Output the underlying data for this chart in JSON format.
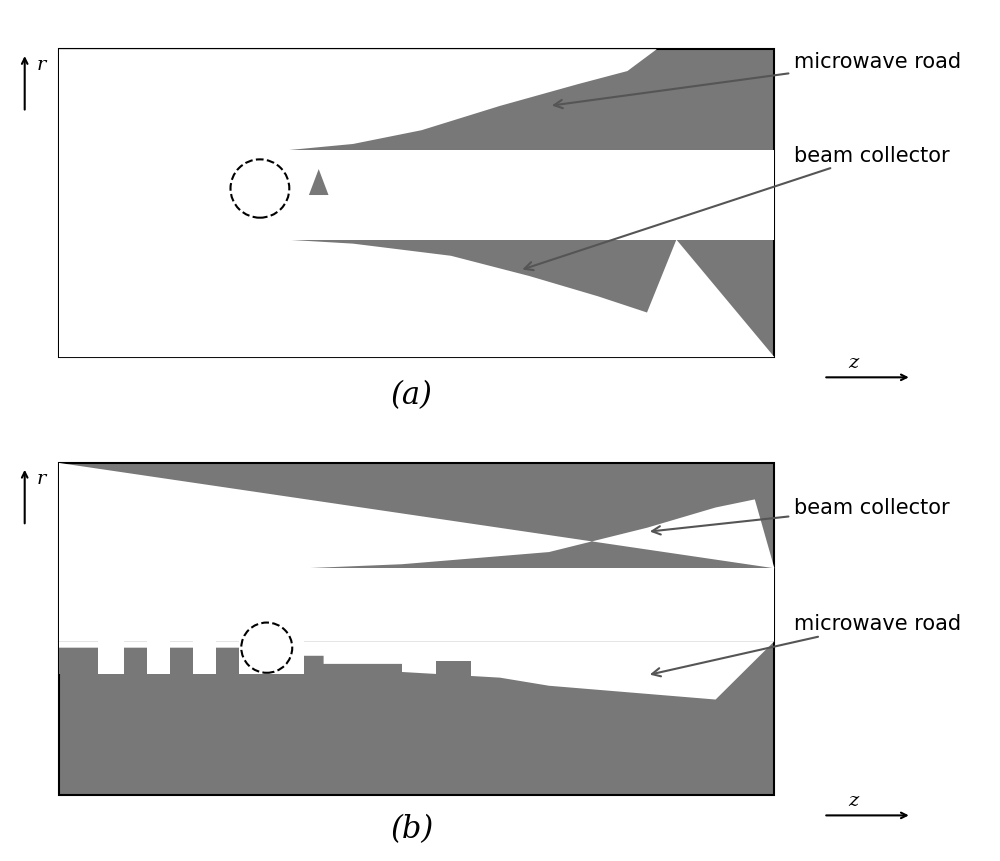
{
  "gray": "#787878",
  "white": "#ffffff",
  "fig_bg": "#ffffff",
  "black": "#000000",
  "arrow_gray": "#555555",
  "text_microwave": "microwave road",
  "text_beam": "beam collector",
  "r_label": "r",
  "z_label": "z",
  "label_a": "(a)",
  "label_b": "(b)",
  "fs_text": 15,
  "fs_axis": 14,
  "fs_caption": 22
}
